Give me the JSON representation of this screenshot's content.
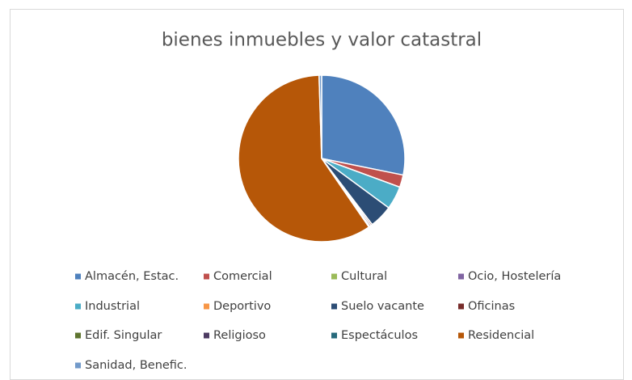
{
  "chart_data": {
    "type": "pie",
    "title": "bienes inmuebles y valor catastral",
    "categories": [
      "Almacén, Estac.",
      "Comercial",
      "Cultural",
      "Ocio, Hostelería",
      "Industrial",
      "Deportivo",
      "Suelo vacante",
      "Oficinas",
      "Edif. Singular",
      "Religioso",
      "Espectáculos",
      "Residencial",
      "Sanidad, Benefic."
    ],
    "values": [
      28.2,
      2.4,
      0,
      0,
      4.5,
      0,
      4.5,
      0.3,
      0,
      0.3,
      0.2,
      59.1,
      0.5
    ],
    "colors": [
      "#4f81bd",
      "#c0504d",
      "#9bbb59",
      "#8064a2",
      "#4bacc6",
      "#f79646",
      "#2c4d75",
      "#772c2a",
      "#5f7530",
      "#4d3b62",
      "#276a7c",
      "#b65708",
      "#729aca"
    ],
    "legend": "bottom"
  }
}
